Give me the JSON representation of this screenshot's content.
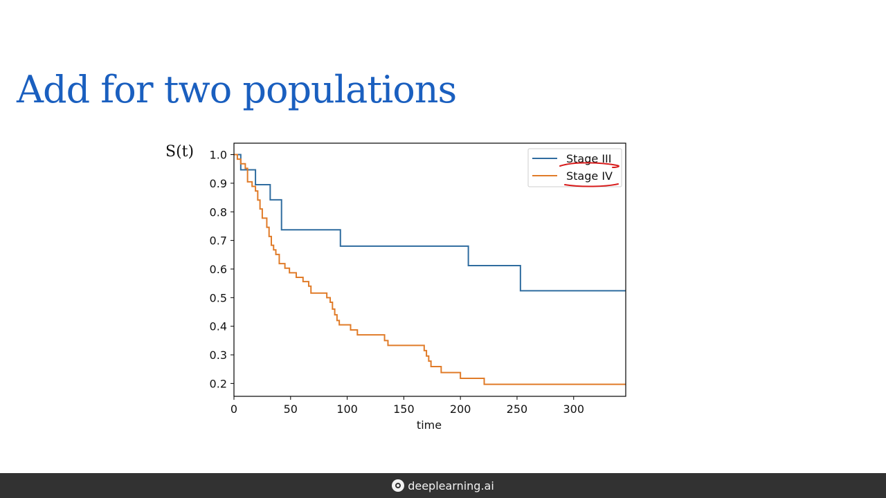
{
  "slide": {
    "title": "Add for two populations"
  },
  "colors": {
    "title": "#1a5fbf",
    "stage3": "#2f6c9f",
    "stage4": "#e07b28",
    "annotation": "#d81b1b",
    "footer_bg": "#323232"
  },
  "footer": {
    "brand_name": "deeplearning.ai",
    "logo_icon": "deeplearning-logo-icon"
  },
  "chart_data": {
    "type": "line",
    "step": "post",
    "ylabel": "S(t)",
    "xlabel": "time",
    "xlim": [
      0,
      346
    ],
    "ylim": [
      0.155,
      1.04
    ],
    "xticks": [
      0,
      50,
      100,
      150,
      200,
      250,
      300
    ],
    "yticks": [
      1.0,
      0.9,
      0.8,
      0.7,
      0.6,
      0.5,
      0.4,
      0.3,
      0.2
    ],
    "grid": false,
    "legend": {
      "position": "top-right",
      "annotations": "red hand-drawn underlines beneath both entries"
    },
    "series": [
      {
        "name": "Stage III",
        "x": [
          0,
          6,
          19,
          32,
          42,
          94,
          207,
          253,
          346
        ],
        "y": [
          1.0,
          0.947,
          0.895,
          0.842,
          0.737,
          0.68,
          0.612,
          0.524,
          0.524
        ]
      },
      {
        "name": "Stage IV",
        "x": [
          0,
          3,
          6,
          10,
          12,
          16,
          19,
          21,
          23,
          25,
          29,
          31,
          33,
          35,
          37,
          40,
          45,
          49,
          55,
          61,
          66,
          68,
          82,
          85,
          87,
          89,
          91,
          93,
          103,
          109,
          133,
          136,
          168,
          170,
          172,
          174,
          183,
          200,
          221,
          346
        ],
        "y": [
          1.0,
          0.984,
          0.968,
          0.952,
          0.905,
          0.889,
          0.873,
          0.841,
          0.81,
          0.778,
          0.746,
          0.714,
          0.683,
          0.667,
          0.651,
          0.619,
          0.603,
          0.587,
          0.571,
          0.556,
          0.54,
          0.516,
          0.5,
          0.484,
          0.46,
          0.44,
          0.42,
          0.405,
          0.387,
          0.37,
          0.35,
          0.333,
          0.315,
          0.296,
          0.278,
          0.259,
          0.238,
          0.218,
          0.197,
          0.197
        ]
      }
    ]
  }
}
